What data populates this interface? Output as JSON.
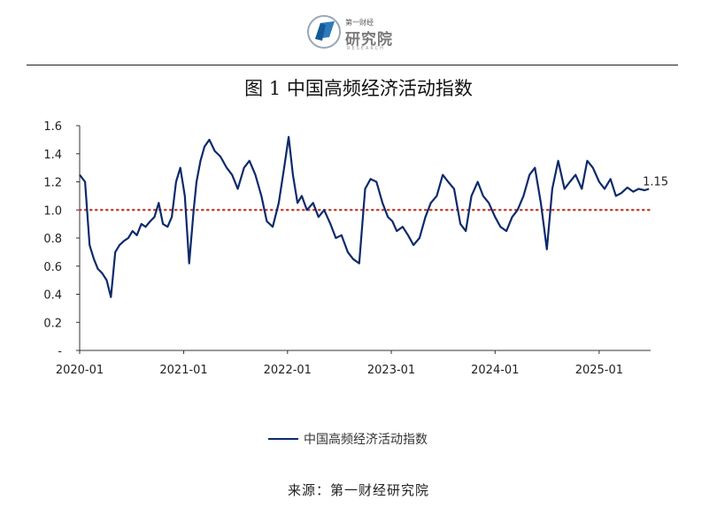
{
  "logo": {
    "name_small": "第一财经",
    "name": "研究院",
    "name_en": "RESEARCH"
  },
  "figure_title": "图 1  中国高频经济活动指数",
  "source_text": "来源：第一财经研究院",
  "colors": {
    "series": "#0d2a6b",
    "reference": "#c0392b",
    "logo": "#2b7bbd"
  },
  "chart_data": {
    "type": "line",
    "title": "图 1  中国高频经济活动指数",
    "xlabel": "",
    "ylabel": "",
    "ylim": [
      0,
      1.6
    ],
    "yticks": [
      {
        "value": 0,
        "label": "-"
      },
      {
        "value": 0.2,
        "label": "0.2"
      },
      {
        "value": 0.4,
        "label": "0.4"
      },
      {
        "value": 0.6,
        "label": "0.6"
      },
      {
        "value": 0.8,
        "label": "0.8"
      },
      {
        "value": 1.0,
        "label": "1.0"
      },
      {
        "value": 1.2,
        "label": "1.2"
      },
      {
        "value": 1.4,
        "label": "1.4"
      },
      {
        "value": 1.6,
        "label": "1.6"
      }
    ],
    "xlim": [
      "2020-01-01",
      "2025-07-01"
    ],
    "xticks": [
      "2020-01",
      "2021-01",
      "2022-01",
      "2023-01",
      "2024-01",
      "2025-01"
    ],
    "grid": false,
    "legend": "bottom",
    "reference_line": {
      "y": 1.0,
      "style": "dotted"
    },
    "end_label": "1.15",
    "series": [
      {
        "name": "中国高频经济活动指数",
        "x": [
          "2020-01-01",
          "2020-01-20",
          "2020-02-05",
          "2020-02-20",
          "2020-03-05",
          "2020-03-20",
          "2020-04-05",
          "2020-04-20",
          "2020-05-05",
          "2020-05-20",
          "2020-06-05",
          "2020-06-20",
          "2020-07-05",
          "2020-07-20",
          "2020-08-05",
          "2020-08-20",
          "2020-09-05",
          "2020-09-20",
          "2020-10-05",
          "2020-10-20",
          "2020-11-05",
          "2020-11-20",
          "2020-12-05",
          "2020-12-20",
          "2021-01-05",
          "2021-01-20",
          "2021-02-05",
          "2021-02-15",
          "2021-03-01",
          "2021-03-15",
          "2021-04-01",
          "2021-04-20",
          "2021-05-10",
          "2021-06-01",
          "2021-06-20",
          "2021-07-10",
          "2021-08-01",
          "2021-08-20",
          "2021-09-10",
          "2021-10-01",
          "2021-10-20",
          "2021-11-10",
          "2021-12-01",
          "2021-12-20",
          "2022-01-05",
          "2022-01-20",
          "2022-02-05",
          "2022-02-20",
          "2022-03-10",
          "2022-04-01",
          "2022-04-20",
          "2022-05-10",
          "2022-06-01",
          "2022-06-20",
          "2022-07-10",
          "2022-08-01",
          "2022-08-20",
          "2022-09-10",
          "2022-10-01",
          "2022-10-20",
          "2022-11-10",
          "2022-12-01",
          "2022-12-20",
          "2023-01-05",
          "2023-01-20",
          "2023-02-10",
          "2023-03-01",
          "2023-03-20",
          "2023-04-10",
          "2023-05-01",
          "2023-05-20",
          "2023-06-10",
          "2023-07-01",
          "2023-07-20",
          "2023-08-10",
          "2023-09-01",
          "2023-09-20",
          "2023-10-10",
          "2023-11-01",
          "2023-11-20",
          "2023-12-10",
          "2024-01-01",
          "2024-01-20",
          "2024-02-10",
          "2024-03-01",
          "2024-03-20",
          "2024-04-10",
          "2024-05-01",
          "2024-05-20",
          "2024-06-10",
          "2024-07-01",
          "2024-07-20",
          "2024-08-10",
          "2024-09-01",
          "2024-09-20",
          "2024-10-10",
          "2024-11-01",
          "2024-11-20",
          "2024-12-10",
          "2025-01-01",
          "2025-01-20",
          "2025-02-10",
          "2025-03-01",
          "2025-03-20",
          "2025-04-10",
          "2025-05-01",
          "2025-05-20",
          "2025-06-10",
          "2025-06-25"
        ],
        "values": [
          1.25,
          1.2,
          0.75,
          0.65,
          0.58,
          0.55,
          0.5,
          0.38,
          0.7,
          0.75,
          0.78,
          0.8,
          0.85,
          0.82,
          0.9,
          0.88,
          0.92,
          0.95,
          1.05,
          0.9,
          0.88,
          0.95,
          1.2,
          1.3,
          1.1,
          0.62,
          1.0,
          1.2,
          1.35,
          1.45,
          1.5,
          1.42,
          1.38,
          1.3,
          1.25,
          1.15,
          1.3,
          1.35,
          1.25,
          1.1,
          0.92,
          0.88,
          1.05,
          1.3,
          1.52,
          1.25,
          1.05,
          1.1,
          1.0,
          1.05,
          0.95,
          1.0,
          0.9,
          0.8,
          0.82,
          0.7,
          0.65,
          0.62,
          1.15,
          1.22,
          1.2,
          1.05,
          0.95,
          0.92,
          0.85,
          0.88,
          0.82,
          0.75,
          0.8,
          0.95,
          1.05,
          1.1,
          1.25,
          1.2,
          1.15,
          0.9,
          0.85,
          1.1,
          1.2,
          1.1,
          1.05,
          0.95,
          0.88,
          0.85,
          0.95,
          1.0,
          1.1,
          1.25,
          1.3,
          1.05,
          0.72,
          1.15,
          1.35,
          1.15,
          1.2,
          1.25,
          1.15,
          1.35,
          1.3,
          1.2,
          1.15,
          1.22,
          1.1,
          1.12,
          1.16,
          1.13,
          1.15,
          1.14,
          1.15
        ]
      }
    ]
  },
  "legend_label": "中国高频经济活动指数"
}
